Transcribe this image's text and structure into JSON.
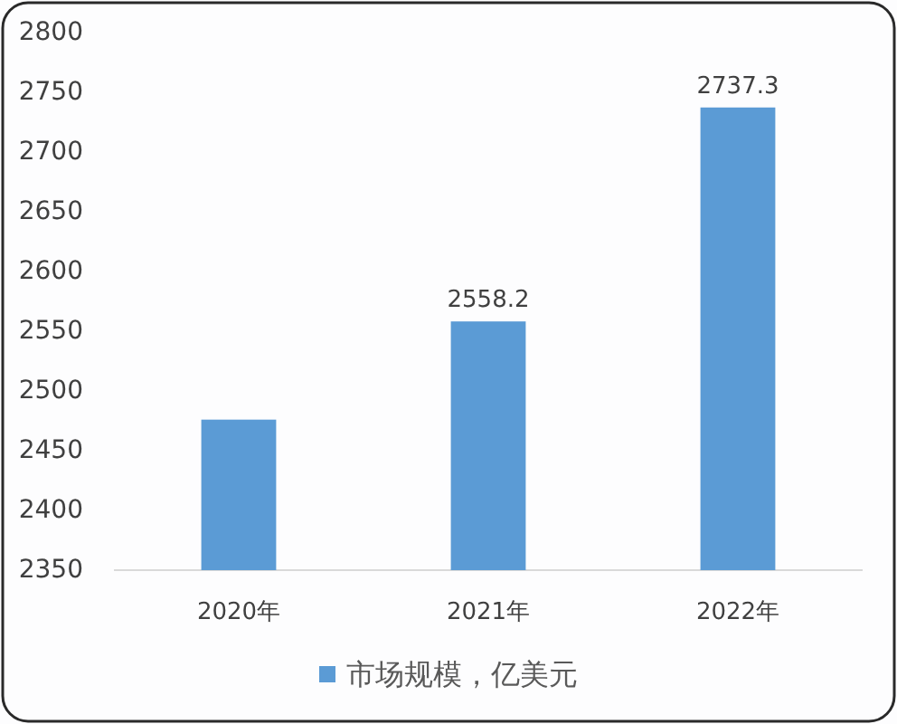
{
  "chart_data": {
    "type": "bar",
    "categories": [
      "2020年",
      "2021年",
      "2022年"
    ],
    "series": [
      {
        "name": "市场规模，亿美元",
        "color": "#5b9bd5",
        "values": [
          2476,
          2558.2,
          2737.3
        ],
        "value_labels": [
          null,
          "2558.2",
          "2737.3"
        ]
      }
    ],
    "ylim": [
      2350,
      2800
    ],
    "yticks": [
      2350,
      2400,
      2450,
      2500,
      2550,
      2600,
      2650,
      2700,
      2750,
      2800
    ],
    "legend": "bottom"
  }
}
